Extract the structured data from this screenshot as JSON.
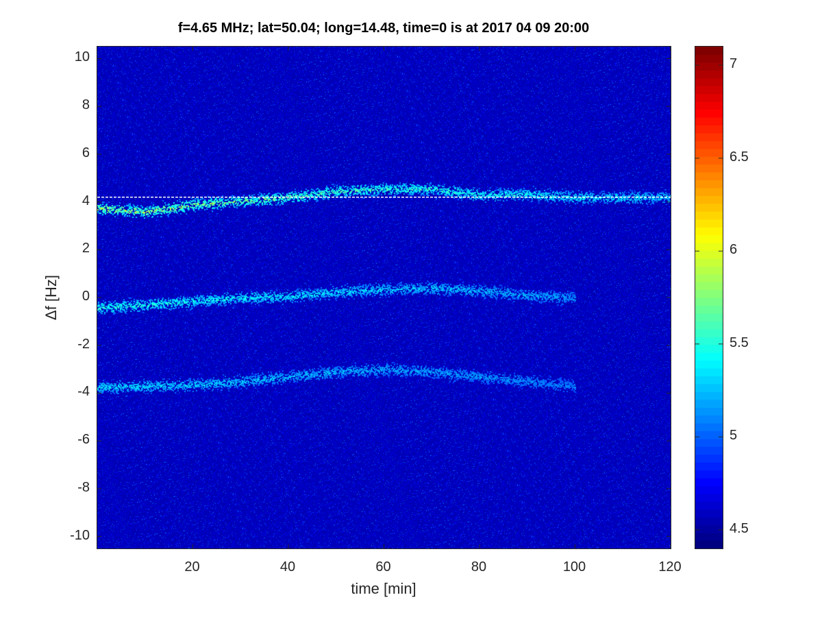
{
  "chart_data": {
    "type": "heatmap",
    "title": "f=4.65 MHz;  lat=50.04; long=14.48, time=0 is at 2017 04 09 20:00",
    "xlabel": "time [min]",
    "ylabel": "Δf [Hz]",
    "xlim": [
      0,
      120
    ],
    "ylim": [
      -10.5,
      10.5
    ],
    "x_ticks": [
      20,
      40,
      60,
      80,
      100,
      120
    ],
    "y_ticks": [
      10,
      8,
      6,
      4,
      2,
      0,
      -2,
      -4,
      -6,
      -8,
      -10
    ],
    "colormap": "jet",
    "colorbar": {
      "range": [
        4.4,
        7.1
      ],
      "ticks": [
        4.5,
        5,
        5.5,
        6,
        6.5,
        7
      ]
    },
    "reference_line": {
      "y": 4.2,
      "style": "dashed",
      "color": "#ffffff"
    },
    "traces": [
      {
        "points": [
          [
            0,
            3.75
          ],
          [
            10,
            3.6
          ],
          [
            20,
            3.9
          ],
          [
            30,
            4.05
          ],
          [
            40,
            4.2
          ],
          [
            50,
            4.45
          ],
          [
            60,
            4.55
          ],
          [
            70,
            4.55
          ],
          [
            80,
            4.3
          ],
          [
            90,
            4.35
          ],
          [
            100,
            4.2
          ],
          [
            110,
            4.2
          ],
          [
            120,
            4.2
          ]
        ],
        "peak_value": 6.1
      },
      {
        "points": [
          [
            0,
            -0.4
          ],
          [
            10,
            -0.3
          ],
          [
            20,
            -0.15
          ],
          [
            30,
            0.0
          ],
          [
            40,
            0.05
          ],
          [
            50,
            0.25
          ],
          [
            60,
            0.35
          ],
          [
            70,
            0.4
          ],
          [
            80,
            0.3
          ],
          [
            90,
            0.1
          ],
          [
            100,
            0.0
          ]
        ],
        "peak_value": 5.7
      },
      {
        "points": [
          [
            0,
            -3.75
          ],
          [
            10,
            -3.7
          ],
          [
            20,
            -3.65
          ],
          [
            30,
            -3.5
          ],
          [
            40,
            -3.3
          ],
          [
            50,
            -3.1
          ],
          [
            60,
            -3.0
          ],
          [
            70,
            -3.1
          ],
          [
            80,
            -3.3
          ],
          [
            90,
            -3.5
          ],
          [
            100,
            -3.7
          ]
        ],
        "peak_value": 5.5
      }
    ]
  }
}
